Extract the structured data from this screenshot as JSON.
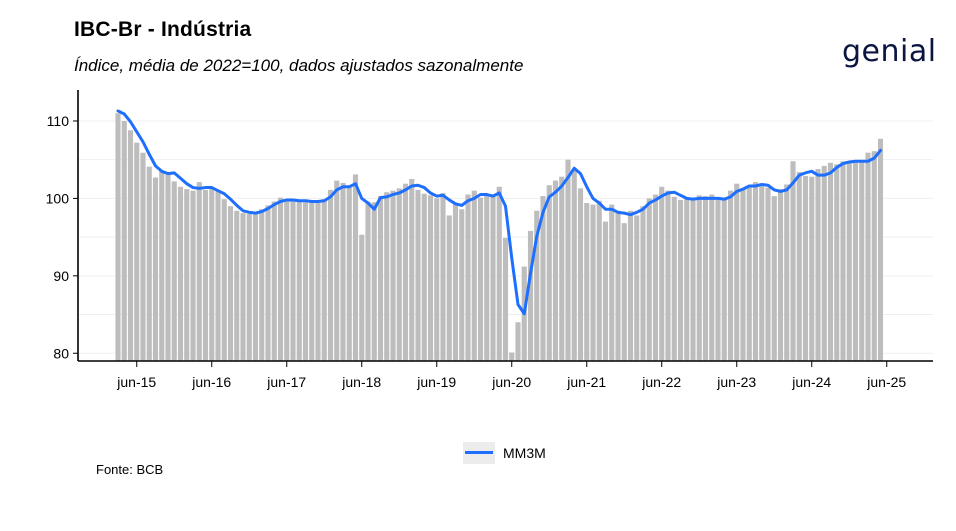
{
  "header": {
    "title": "IBC-Br - Indústria",
    "subtitle": "Índice, média de 2022=100, dados ajustados sazonalmente",
    "logo_text": "genial"
  },
  "footer": {
    "source": "Fonte: BCB"
  },
  "chart_data": {
    "type": "bar",
    "start_month": "2015-03",
    "ylim": [
      79,
      114
    ],
    "yticks": [
      80,
      90,
      100,
      110
    ],
    "xtick_labels": [
      "jun-15",
      "jun-16",
      "jun-17",
      "jun-18",
      "jun-19",
      "jun-20",
      "jun-21",
      "jun-22",
      "jun-23",
      "jun-24",
      "jun-25"
    ],
    "grid": true,
    "legend_position": "bottom",
    "colors": {
      "bars": "#bdbdbd",
      "line": "#1f6fff"
    },
    "series": [
      {
        "kind": "bar",
        "values": [
          111.0,
          110.0,
          108.8,
          107.2,
          105.9,
          104.1,
          102.7,
          103.6,
          103.1,
          102.2,
          101.5,
          101.2,
          101.0,
          102.1,
          101.1,
          101.2,
          100.9,
          99.9,
          99.0,
          98.4,
          98.1,
          98.0,
          98.2,
          98.6,
          99.1,
          99.6,
          100.1,
          99.6,
          99.9,
          99.7,
          99.5,
          99.6,
          99.7,
          99.9,
          101.1,
          102.3,
          102.0,
          101.4,
          103.1,
          95.3,
          99.6,
          99.5,
          100.3,
          100.8,
          101.0,
          101.3,
          101.9,
          102.5,
          101.1,
          100.6,
          100.4,
          100.0,
          100.7,
          97.8,
          99.4,
          98.6,
          100.5,
          101.0,
          100.1,
          100.4,
          100.3,
          101.5,
          94.9,
          80.1,
          84.0,
          91.2,
          95.8,
          98.4,
          100.3,
          101.7,
          102.3,
          102.8,
          105.0,
          103.8,
          101.3,
          99.4,
          99.2,
          99.7,
          97.0,
          99.2,
          98.4,
          96.8,
          98.4,
          97.8,
          99.0,
          100.0,
          100.5,
          101.5,
          101.0,
          100.2,
          99.8,
          100.0,
          99.9,
          100.4,
          100.3,
          100.5,
          100.2,
          99.9,
          101.0,
          101.9,
          101.3,
          101.6,
          102.1,
          101.6,
          101.4,
          100.3,
          101.2,
          101.8,
          104.8,
          103.4,
          102.9,
          102.8,
          103.8,
          104.2,
          104.6,
          104.4,
          104.8,
          104.8,
          104.9,
          104.7,
          105.9,
          106.1,
          107.7
        ],
        "name": ""
      },
      {
        "kind": "line",
        "name": "MM3M",
        "values": [
          111.3,
          110.9,
          109.9,
          108.6,
          107.3,
          105.7,
          104.2,
          103.5,
          103.2,
          103.3,
          102.6,
          101.9,
          101.4,
          101.3,
          101.4,
          101.4,
          101.0,
          100.6,
          99.9,
          99.1,
          98.4,
          98.2,
          98.1,
          98.3,
          98.7,
          99.2,
          99.6,
          99.8,
          99.8,
          99.7,
          99.7,
          99.6,
          99.6,
          99.7,
          100.2,
          101.1,
          101.5,
          101.5,
          101.9,
          100.0,
          99.4,
          98.6,
          100.1,
          100.2,
          100.5,
          100.7,
          101.1,
          101.6,
          101.7,
          101.4,
          100.7,
          100.3,
          100.4,
          99.8,
          99.3,
          99.1,
          99.7,
          100.0,
          100.5,
          100.5,
          100.3,
          100.7,
          99.0,
          92.3,
          86.3,
          85.1,
          90.3,
          95.1,
          98.2,
          100.2,
          100.8,
          101.6,
          102.7,
          103.9,
          103.2,
          101.5,
          100.0,
          99.4,
          98.6,
          98.6,
          98.2,
          98.1,
          97.9,
          98.2,
          98.6,
          99.4,
          99.8,
          100.3,
          100.7,
          100.8,
          100.4,
          100.0,
          99.9,
          100.0,
          100.0,
          100.0,
          100.0,
          99.9,
          100.2,
          100.9,
          101.2,
          101.6,
          101.6,
          101.8,
          101.7,
          101.1,
          100.9,
          101.1,
          102.0,
          103.0,
          103.3,
          103.5,
          103.0,
          103.0,
          103.3,
          104.0,
          104.5,
          104.7,
          104.8,
          104.8,
          104.8,
          105.2,
          106.2
        ]
      }
    ]
  }
}
